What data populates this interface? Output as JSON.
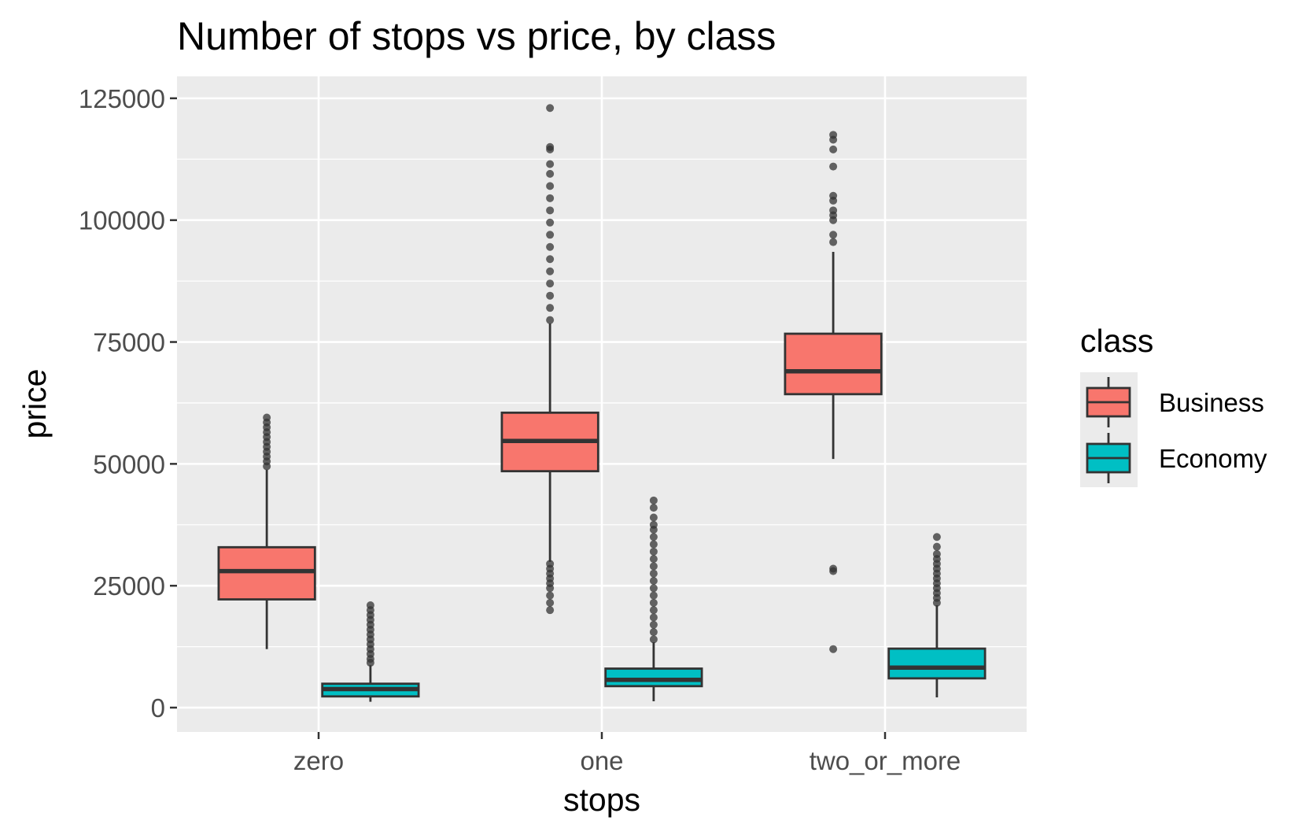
{
  "chart_data": {
    "type": "boxplot",
    "title": "Number of stops vs price, by class",
    "xlabel": "stops",
    "ylabel": "price",
    "categories": [
      "zero",
      "one",
      "two_or_more"
    ],
    "y_ticks": [
      0,
      25000,
      50000,
      75000,
      100000,
      125000
    ],
    "y_tick_labels": [
      "0",
      "25000",
      "50000",
      "75000",
      "100000",
      "125000"
    ],
    "ylim": [
      -5000,
      129500
    ],
    "grid": true,
    "legend": {
      "title": "class",
      "position": "right",
      "entries": [
        "Business",
        "Economy"
      ]
    },
    "colors": {
      "Business": "#F8766D",
      "Economy": "#00BFC4",
      "panel": "#EBEBEB",
      "grid": "#FFFFFF",
      "outline": "#333333"
    },
    "series": [
      {
        "name": "Business",
        "boxes": [
          {
            "category": "zero",
            "min": 12000,
            "q1": 22200,
            "median": 28000,
            "q3": 32900,
            "max": 48800,
            "outliers": [
              49500,
              50500,
              51500,
              52500,
              53500,
              54500,
              55500,
              56500,
              57500,
              58500,
              59500
            ]
          },
          {
            "category": "one",
            "min": 29900,
            "q1": 48500,
            "median": 54700,
            "q3": 60500,
            "max": 78800,
            "outliers": [
              20000,
              21500,
              23000,
              24500,
              25500,
              26500,
              27500,
              28500,
              29500,
              79500,
              82000,
              84500,
              87000,
              89500,
              92000,
              94500,
              97000,
              99500,
              102000,
              104500,
              107000,
              109500,
              111500,
              114500,
              115000,
              123000
            ]
          },
          {
            "category": "two_or_more",
            "min": 51000,
            "q1": 64300,
            "median": 69000,
            "q3": 76700,
            "max": 93500,
            "outliers": [
              12000,
              28000,
              28500,
              95500,
              97000,
              100000,
              101000,
              102000,
              104000,
              105000,
              111000,
              114500,
              116500,
              117500
            ]
          }
        ]
      },
      {
        "name": "Economy",
        "boxes": [
          {
            "category": "zero",
            "min": 1200,
            "q1": 2300,
            "median": 3800,
            "q3": 4900,
            "max": 8700,
            "outliers": [
              9200,
              10000,
              11000,
              12000,
              13000,
              14000,
              15000,
              16000,
              17000,
              18000,
              19000,
              20000,
              21000
            ]
          },
          {
            "category": "one",
            "min": 1300,
            "q1": 4400,
            "median": 5700,
            "q3": 8000,
            "max": 13400,
            "outliers": [
              14000,
              15500,
              17000,
              18500,
              20000,
              21500,
              23000,
              24500,
              26000,
              27500,
              29000,
              30500,
              32000,
              33500,
              35000,
              36500,
              37500,
              39000,
              41000,
              42500
            ]
          },
          {
            "category": "two_or_more",
            "min": 2100,
            "q1": 6000,
            "median": 8200,
            "q3": 12100,
            "max": 21000,
            "outliers": [
              21500,
              22500,
              23500,
              24500,
              25500,
              26500,
              27500,
              28500,
              29500,
              30500,
              31500,
              33000,
              35000
            ]
          }
        ]
      }
    ]
  }
}
